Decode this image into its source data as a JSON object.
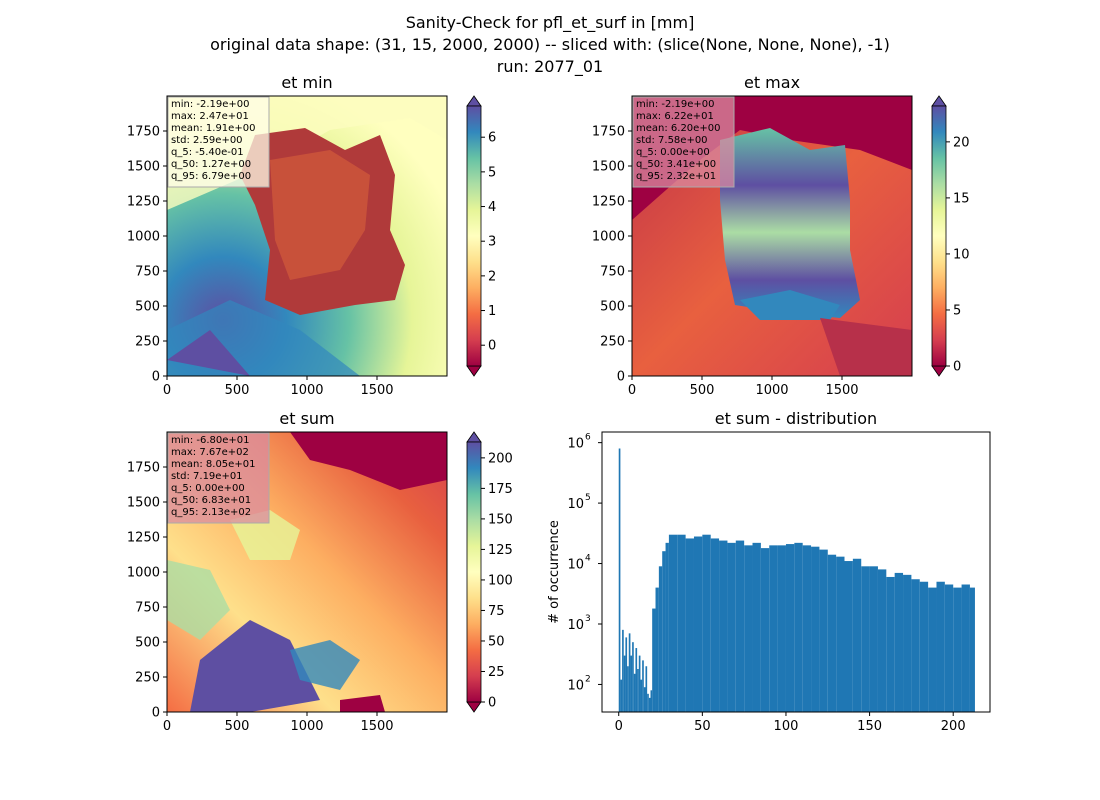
{
  "title": {
    "line1": "Sanity-Check for pfl_et_surf in [mm]",
    "line2": "original data shape: (31, 15, 2000, 2000) -- sliced with: (slice(None, None, None), -1)",
    "line3": "run: 2077_01"
  },
  "chart_data": [
    {
      "type": "heatmap",
      "title": "et min",
      "xlim": [
        0,
        2000
      ],
      "ylim": [
        0,
        2000
      ],
      "xticks": [
        0,
        500,
        1000,
        1500
      ],
      "yticks": [
        0,
        250,
        500,
        750,
        1000,
        1250,
        1500,
        1750
      ],
      "colormap": "Spectral",
      "colorbar": {
        "min": -0.6,
        "max": 6.9,
        "ticks": [
          0,
          1,
          2,
          3,
          4,
          5,
          6
        ],
        "extend": "both"
      },
      "stats": [
        "min: -2.19e+00",
        "max: 2.47e+01",
        "mean: 1.91e+00",
        "std: 2.59e+00",
        "q_5: -5.40e-01",
        "q_50: 1.27e+00",
        "q_95: 6.79e+00"
      ],
      "stats_box_color": "#fffde8"
    },
    {
      "type": "heatmap",
      "title": "et max",
      "xlim": [
        0,
        2000
      ],
      "ylim": [
        0,
        2000
      ],
      "xticks": [
        0,
        500,
        1000,
        1500
      ],
      "yticks": [
        0,
        250,
        500,
        750,
        1000,
        1250,
        1500,
        1750
      ],
      "colormap": "Spectral",
      "colorbar": {
        "min": 0,
        "max": 23.2,
        "ticks": [
          0,
          5,
          10,
          15,
          20
        ],
        "extend": "both"
      },
      "stats": [
        "min: -2.19e+00",
        "max: 6.22e+01",
        "mean: 6.20e+00",
        "std: 7.58e+00",
        "q_5: 0.00e+00",
        "q_50: 3.41e+00",
        "q_95: 2.32e+01"
      ],
      "stats_box_color": "#d98ba0"
    },
    {
      "type": "heatmap",
      "title": "et sum",
      "xlim": [
        0,
        2000
      ],
      "ylim": [
        0,
        2000
      ],
      "xticks": [
        0,
        500,
        1000,
        1500
      ],
      "yticks": [
        0,
        250,
        500,
        750,
        1000,
        1250,
        1500,
        1750
      ],
      "colormap": "Spectral",
      "colorbar": {
        "min": 0,
        "max": 213,
        "ticks": [
          0,
          25,
          50,
          75,
          100,
          125,
          150,
          175,
          200
        ],
        "extend": "both"
      },
      "stats": [
        "min: -6.80e+01",
        "max: 7.67e+02",
        "mean: 8.05e+01",
        "std: 7.19e+01",
        "q_5: 0.00e+00",
        "q_50: 6.83e+01",
        "q_95: 2.13e+02"
      ],
      "stats_box_color": "#d98ba0"
    },
    {
      "type": "bar",
      "title": "et sum - distribution",
      "ylabel": "# of occurrence",
      "yscale": "log",
      "xlim": [
        -10,
        222
      ],
      "ylim": [
        35,
        1500000
      ],
      "xticks": [
        0,
        50,
        100,
        150,
        200
      ],
      "yticks": [
        {
          "value": 100,
          "label": "10",
          "exp": "2"
        },
        {
          "value": 1000,
          "label": "10",
          "exp": "3"
        },
        {
          "value": 10000,
          "label": "10",
          "exp": "4"
        },
        {
          "value": 100000,
          "label": "10",
          "exp": "5"
        },
        {
          "value": 1000000,
          "label": "10",
          "exp": "6"
        }
      ],
      "color": "#1f77b4",
      "bin_width": 0.85,
      "x": [
        0,
        1,
        2,
        3,
        4,
        5,
        6,
        7,
        8,
        9,
        10,
        11,
        12,
        13,
        14,
        15,
        16,
        17,
        18,
        19,
        20,
        22,
        24,
        26,
        28,
        30,
        35,
        40,
        45,
        50,
        55,
        60,
        65,
        70,
        75,
        80,
        85,
        90,
        95,
        100,
        105,
        110,
        115,
        120,
        125,
        130,
        135,
        140,
        145,
        150,
        155,
        160,
        165,
        170,
        175,
        180,
        185,
        190,
        195,
        200,
        205,
        210
      ],
      "values": [
        800000,
        120,
        800,
        300,
        600,
        200,
        700,
        300,
        500,
        150,
        400,
        180,
        300,
        120,
        250,
        90,
        200,
        70,
        60,
        80,
        1800,
        4000,
        9000,
        16000,
        22000,
        30000,
        30000,
        26000,
        28000,
        30000,
        26000,
        24000,
        22000,
        24000,
        20000,
        22000,
        18000,
        20000,
        20000,
        21000,
        22000,
        20000,
        19000,
        17000,
        14000,
        13000,
        11000,
        12000,
        9000,
        9000,
        8000,
        6000,
        7000,
        6500,
        5500,
        5000,
        4000,
        5000,
        4500,
        4000,
        4500,
        4000
      ]
    }
  ]
}
